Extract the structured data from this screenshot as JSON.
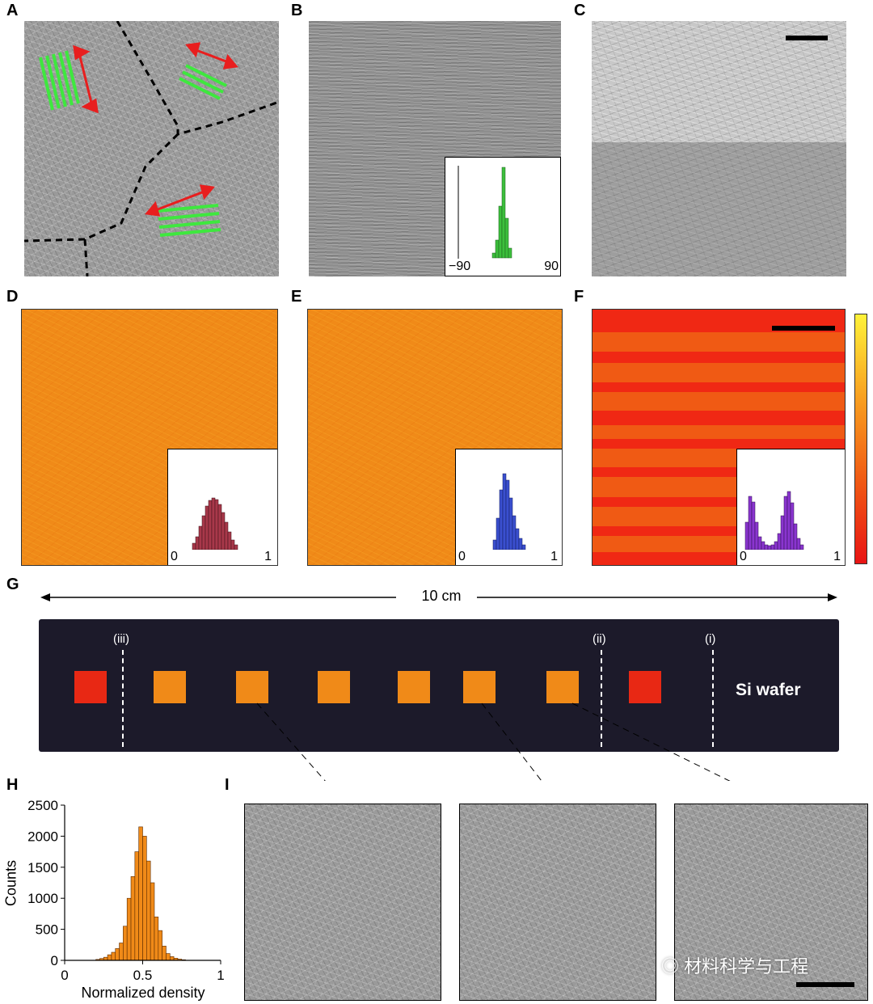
{
  "panels": {
    "A": "A",
    "B": "B",
    "C": "C",
    "D": "D",
    "E": "E",
    "F": "F",
    "G": "G",
    "H": "H",
    "I": "I"
  },
  "insets": {
    "B": {
      "xmin_label": "−90",
      "xmax_label": "90",
      "color": "#3cbf3c"
    },
    "D": {
      "xmin_label": "0",
      "xmax_label": "1",
      "color": "#a8384a"
    },
    "E": {
      "xmin_label": "0",
      "xmax_label": "1",
      "color": "#3a4fcf"
    },
    "F": {
      "xmin_label": "0",
      "xmax_label": "1",
      "color": "#8a35cf"
    }
  },
  "panel_g": {
    "scale_text": "10 cm",
    "wafer_label": "Si wafer",
    "cut_labels": [
      "(iii)",
      "(ii)",
      "(i)"
    ]
  },
  "chart_data": {
    "type": "bar",
    "xlabel": "Normalized density",
    "ylabel": "Counts",
    "xlim": [
      0,
      1
    ],
    "ylim": [
      0,
      2500
    ],
    "xticks": [
      "0",
      "0.5",
      "1"
    ],
    "yticks": [
      "0",
      "500",
      "1000",
      "1500",
      "2000",
      "2500"
    ],
    "bar_color": "#f08a18",
    "bins": [
      0.2,
      0.225,
      0.25,
      0.275,
      0.3,
      0.325,
      0.35,
      0.375,
      0.4,
      0.425,
      0.45,
      0.475,
      0.5,
      0.525,
      0.55,
      0.575,
      0.6,
      0.625,
      0.65,
      0.675,
      0.7,
      0.725,
      0.75
    ],
    "values": [
      15,
      30,
      50,
      90,
      130,
      190,
      280,
      550,
      1000,
      1350,
      1750,
      2150,
      2000,
      1600,
      1250,
      700,
      480,
      230,
      110,
      60,
      35,
      20,
      10
    ]
  },
  "watermark": "材料科学与工程"
}
